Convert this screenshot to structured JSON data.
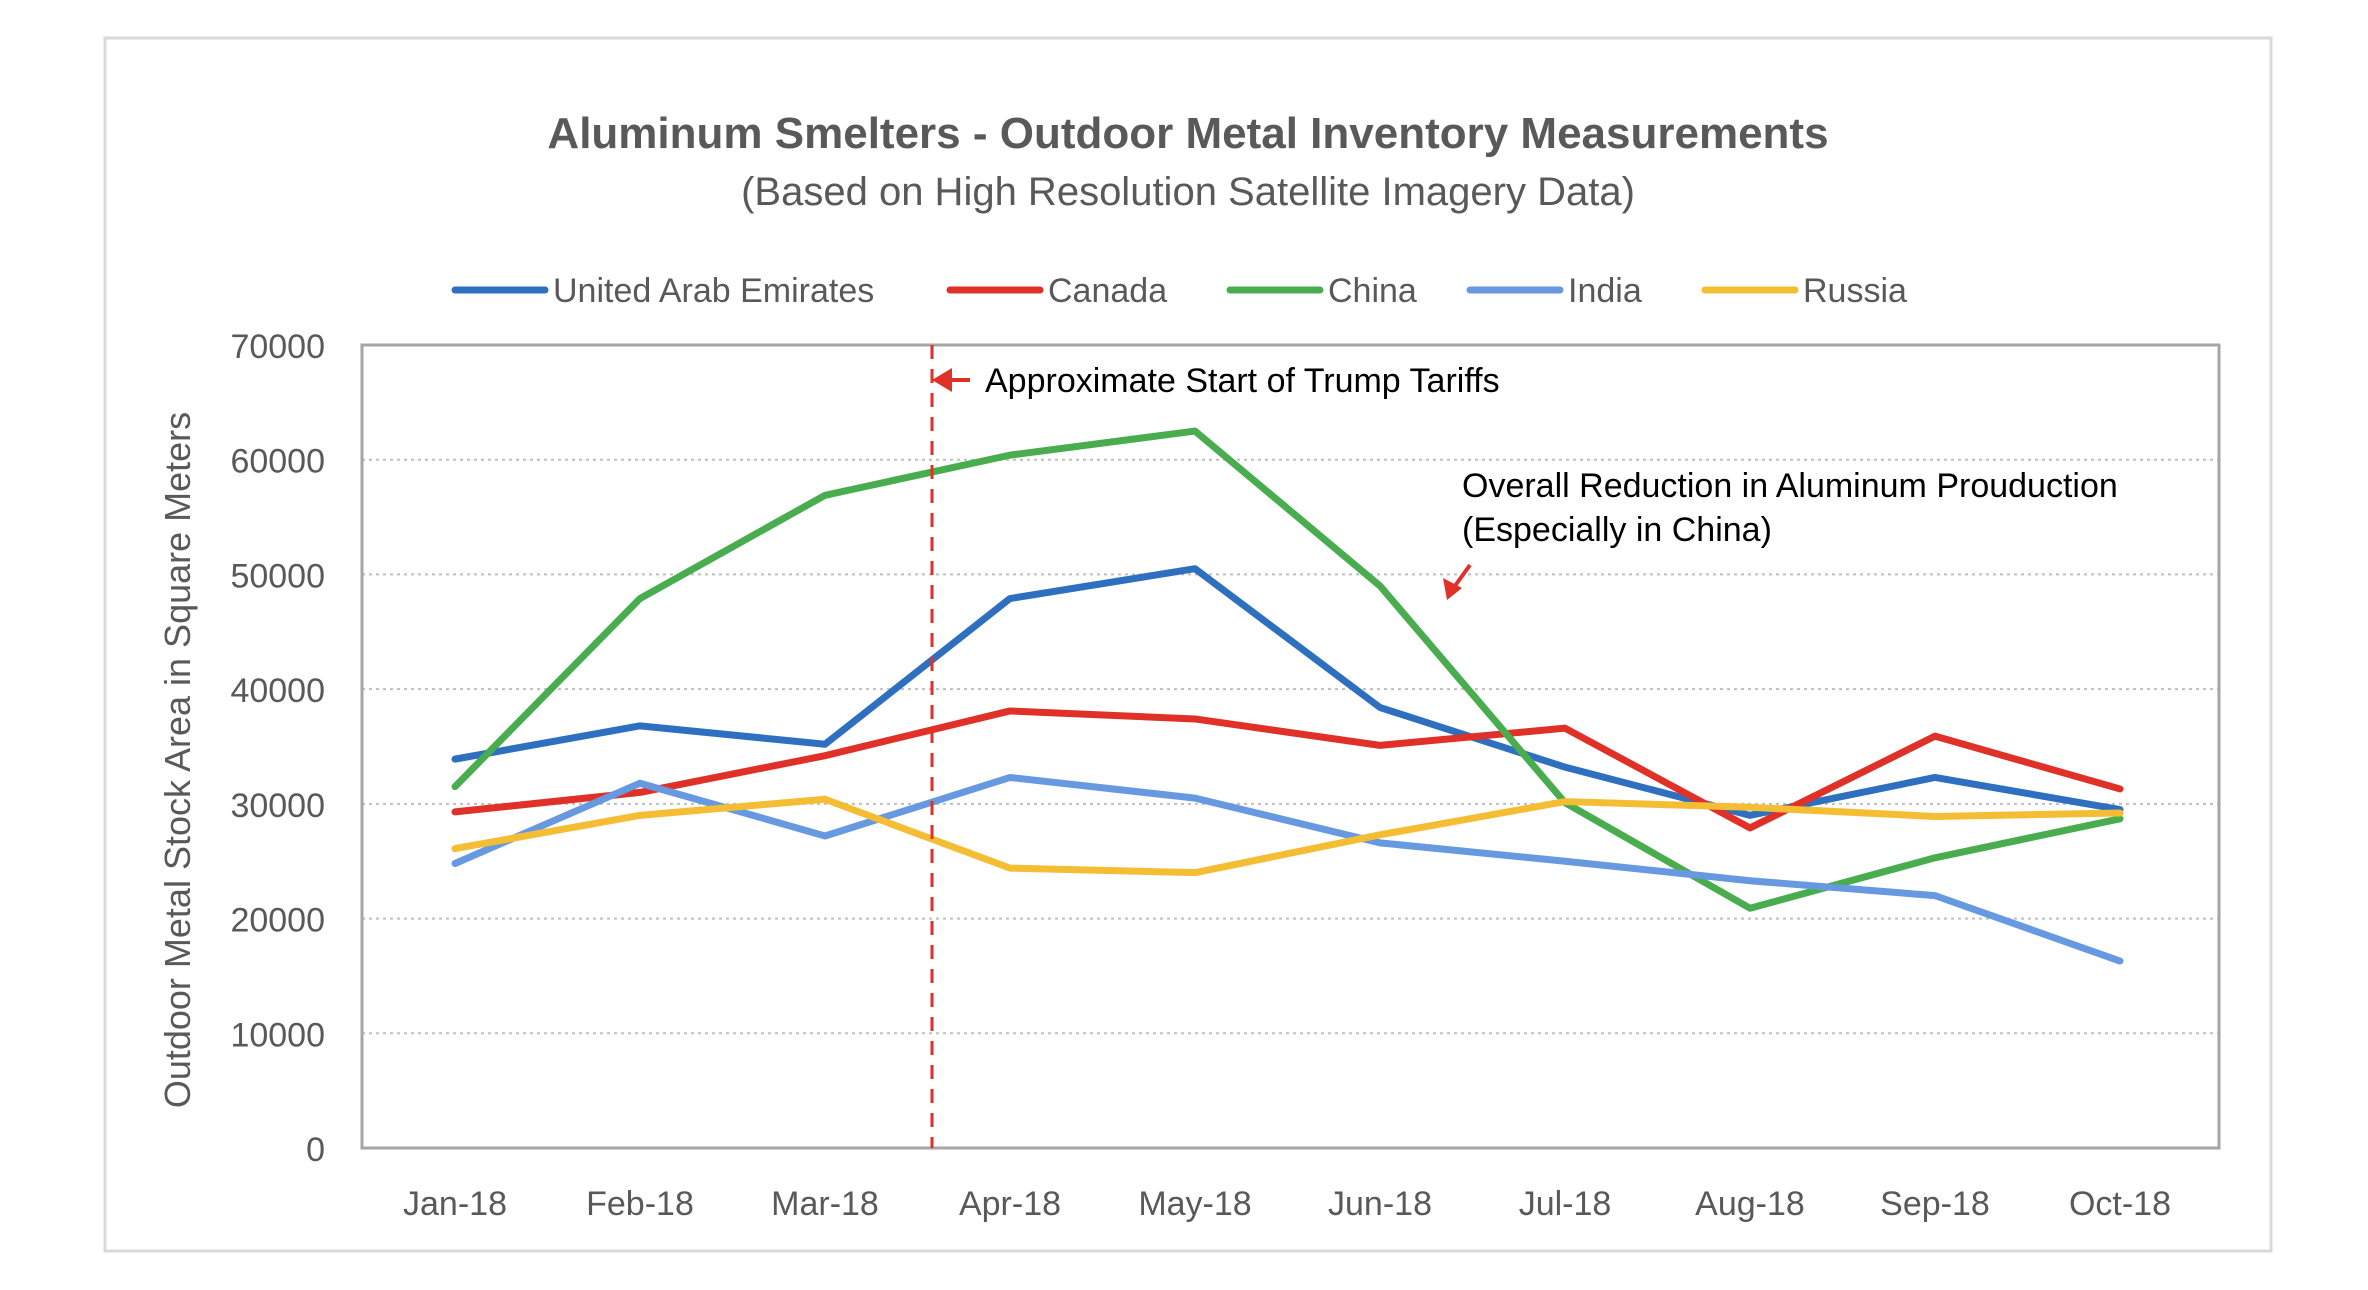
{
  "chart_data": {
    "type": "line",
    "title": "Aluminum Smelters - Outdoor Metal Inventory Measurements",
    "subtitle": "(Based on High Resolution Satellite Imagery Data)",
    "xlabel": "",
    "ylabel": "Outdoor Metal Stock Area in Square Meters",
    "ylim": [
      0,
      70000
    ],
    "yticks": [
      0,
      10000,
      20000,
      30000,
      40000,
      50000,
      60000,
      70000
    ],
    "ytick_labels": [
      "0",
      "10000",
      "20000",
      "30000",
      "40000",
      "50000",
      "60000",
      "70000"
    ],
    "grid": true,
    "legend_position": "top",
    "categories": [
      "Jan-18",
      "Feb-18",
      "Mar-18",
      "Apr-18",
      "May-18",
      "Jun-18",
      "Jul-18",
      "Aug-18",
      "Sep-18",
      "Oct-18"
    ],
    "series": [
      {
        "name": "United Arab Emirates",
        "color": "#2e6fbf",
        "values": [
          33900,
          36800,
          35200,
          47900,
          50500,
          38400,
          33200,
          29000,
          32300,
          29500
        ]
      },
      {
        "name": "Canada",
        "color": "#e03128",
        "values": [
          29300,
          31000,
          34200,
          38100,
          37400,
          35100,
          36600,
          27900,
          35900,
          31300
        ]
      },
      {
        "name": "China",
        "color": "#49ad4f",
        "values": [
          31500,
          47900,
          56900,
          60400,
          62500,
          49000,
          30100,
          20900,
          25300,
          28700
        ]
      },
      {
        "name": "India",
        "color": "#6699e0",
        "values": [
          24800,
          31800,
          27200,
          32300,
          30500,
          26600,
          25000,
          23300,
          22000,
          16300
        ]
      },
      {
        "name": "Russia",
        "color": "#f4bd34",
        "values": [
          26100,
          29000,
          30400,
          24400,
          24000,
          27300,
          30200,
          29700,
          28900,
          29200
        ]
      }
    ],
    "annotations": {
      "tariffs": {
        "text": "Approximate Start of Trump Tariffs",
        "x_between": [
          "Mar-18",
          "Apr-18"
        ],
        "color": "#e03128"
      },
      "reduction": {
        "line1": "Overall Reduction in Aluminum Prouduction",
        "line2": "(Especially in China)",
        "color": "#e03128"
      }
    }
  }
}
